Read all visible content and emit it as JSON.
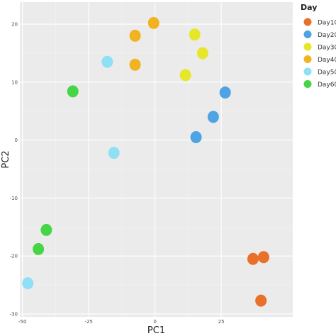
{
  "chart_data": {
    "type": "scatter",
    "title": "",
    "xlabel": "PC1",
    "ylabel": "PC2",
    "xlim": [
      -51,
      52
    ],
    "ylim": [
      -30.5,
      23.8
    ],
    "x_ticks": [
      -50,
      -25,
      0,
      25
    ],
    "x_tick_labels": [
      "-50",
      "-25",
      "0",
      "25"
    ],
    "y_ticks": [
      -30,
      -20,
      -10,
      0,
      10,
      20
    ],
    "y_tick_labels": [
      "-30",
      "-20",
      "-10",
      "0",
      "10",
      "20"
    ],
    "grid": true,
    "panel_background": "#ebebeb",
    "legend": {
      "title": "Day",
      "position": "right"
    },
    "series": [
      {
        "name": "Day10",
        "color": "#e8702a",
        "points": [
          [
            37,
            -20.5
          ],
          [
            41,
            -20.2
          ],
          [
            40,
            -27.7
          ]
        ]
      },
      {
        "name": "Day20",
        "color": "#4ea3e3",
        "points": [
          [
            26.5,
            8.2
          ],
          [
            22,
            4.0
          ],
          [
            15.5,
            0.5
          ]
        ]
      },
      {
        "name": "Day30",
        "color": "#e6e62a",
        "points": [
          [
            15,
            18.2
          ],
          [
            18,
            15.0
          ],
          [
            11.5,
            11.2
          ]
        ]
      },
      {
        "name": "Day40",
        "color": "#f2b320",
        "points": [
          [
            -0.5,
            20.2
          ],
          [
            -7.5,
            18.0
          ],
          [
            -7.5,
            13.0
          ]
        ]
      },
      {
        "name": "Day50",
        "color": "#8fdff5",
        "points": [
          [
            -18,
            13.5
          ],
          [
            -15.5,
            -2.2
          ],
          [
            -48,
            -24.7
          ]
        ]
      },
      {
        "name": "Day60",
        "color": "#45d645",
        "points": [
          [
            -31,
            8.4
          ],
          [
            -41,
            -15.5
          ],
          [
            -44,
            -18.8
          ]
        ]
      }
    ]
  }
}
